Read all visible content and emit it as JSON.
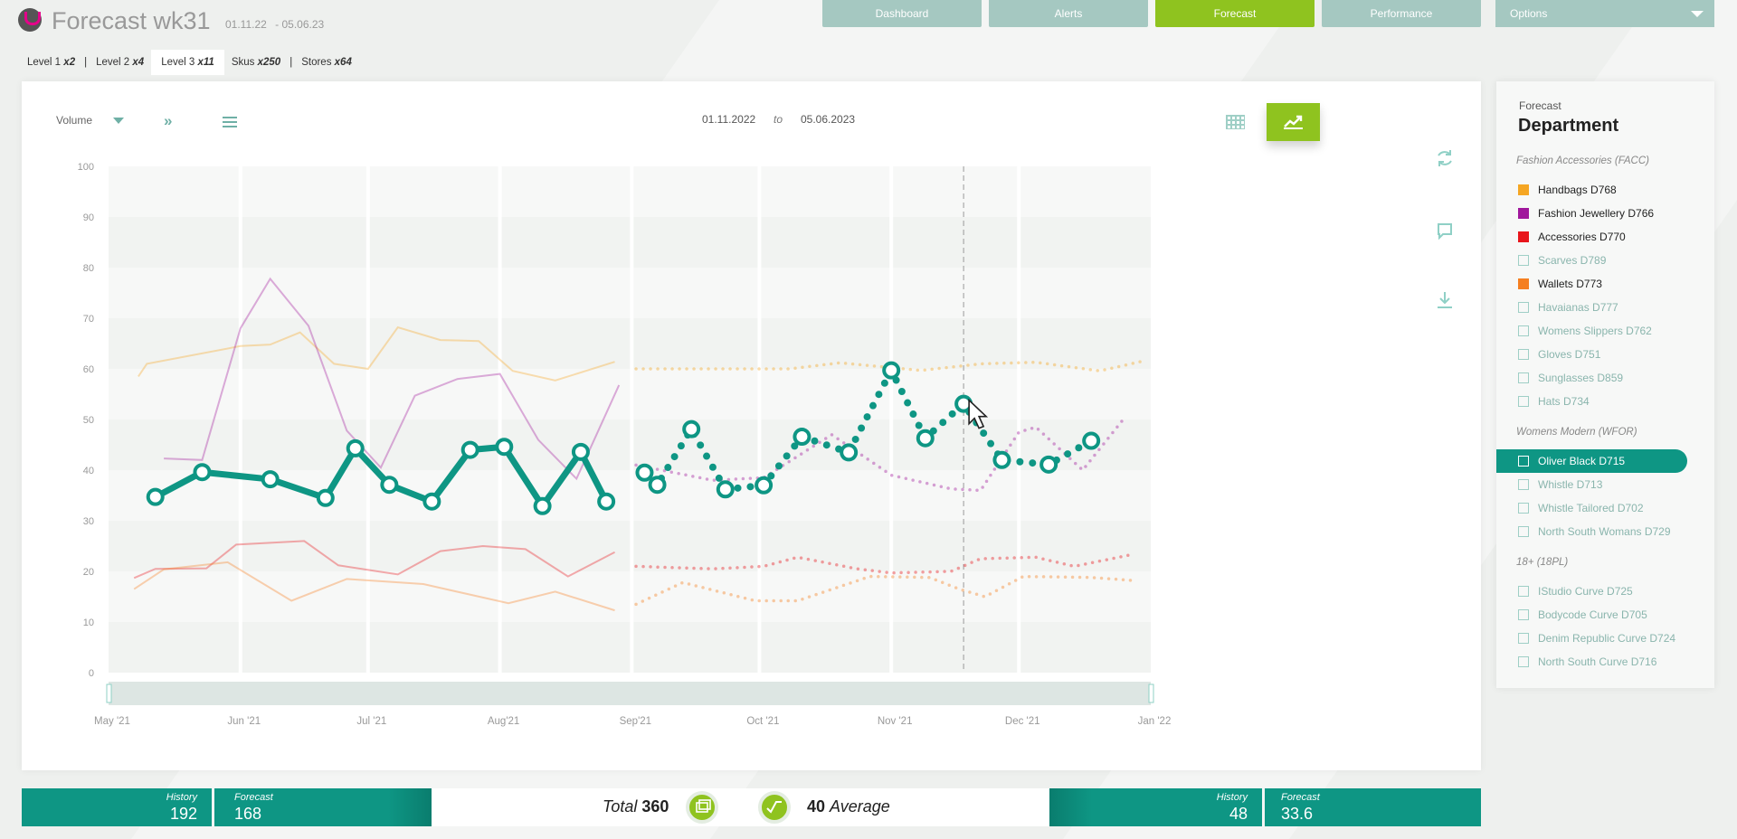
{
  "header": {
    "title": "Forecast wk31",
    "date_from": "01.11.22",
    "date_to": "- 05.06.23"
  },
  "nav": {
    "dashboard": "Dashboard",
    "alerts": "Alerts",
    "forecast": "Forecast",
    "performance": "Performance",
    "options": "Options"
  },
  "levels": [
    {
      "label": "Level 1",
      "count": "x2"
    },
    {
      "label": "Level 2",
      "count": "x4"
    },
    {
      "label": "Level 3",
      "count": "x11"
    },
    {
      "label": "Skus",
      "count": "x250"
    },
    {
      "label": "Stores",
      "count": "x64"
    }
  ],
  "toolbar": {
    "measure": "Volume",
    "range_from": "01.11.2022",
    "range_to_word": "to",
    "range_to": "05.06.2023"
  },
  "legend": {
    "kicker": "Forecast",
    "heading": "Department",
    "groups": [
      {
        "label": "Fashion Accessories (FACC)",
        "items": [
          {
            "label": "Handbags D768",
            "color": "#f5a623",
            "on": true
          },
          {
            "label": "Fashion Jewellery D766",
            "color": "#a0179c",
            "on": true
          },
          {
            "label": "Accessories D770",
            "color": "#e8151b",
            "on": true
          },
          {
            "label": "Scarves D789",
            "on": false
          },
          {
            "label": "Wallets D773",
            "color": "#f57f20",
            "on": true
          },
          {
            "label": "Havaianas D777",
            "on": false
          },
          {
            "label": "Womens Slippers D762",
            "on": false
          },
          {
            "label": "Gloves D751",
            "on": false
          },
          {
            "label": "Sunglasses D859",
            "on": false
          },
          {
            "label": "Hats D734",
            "on": false
          }
        ]
      },
      {
        "label": "Womens Modern (WFOR)",
        "items": [
          {
            "label": "Oliver Black D715",
            "on": true,
            "selected": true
          },
          {
            "label": "Whistle D713",
            "on": false
          },
          {
            "label": "Whistle Tailored D702",
            "on": false
          },
          {
            "label": "North South Womans D729",
            "on": false
          }
        ]
      },
      {
        "label": "18+ (18PL)",
        "items": [
          {
            "label": "IStudio Curve D725",
            "on": false
          },
          {
            "label": "Bodycode Curve D705",
            "on": false
          },
          {
            "label": "Denim Republic Curve D724",
            "on": false
          },
          {
            "label": "North South Curve D716",
            "on": false
          }
        ]
      }
    ]
  },
  "bottom": {
    "left_history_label": "History",
    "left_history_value": "192",
    "left_forecast_label": "Forecast",
    "left_forecast_value": "168",
    "total_label": "Total",
    "total_value": "360",
    "avg_value": "40",
    "avg_label": "Average",
    "right_history_label": "History",
    "right_history_value": "48",
    "right_forecast_label": "Forecast",
    "right_forecast_value": "33.6"
  },
  "colors": {
    "primary": "#0e9684",
    "accent": "#8fc31f",
    "nav": "#a5c8c1"
  },
  "chart_data": {
    "type": "line",
    "x_type": "date",
    "xlim": [
      "2021-05-01",
      "2022-01-01"
    ],
    "ylim": [
      0,
      100
    ],
    "y_ticks": [
      0,
      10,
      20,
      30,
      40,
      50,
      60,
      70,
      80,
      90,
      100
    ],
    "x_ticks": [
      {
        "x": "2021-05-01",
        "label": "May '21"
      },
      {
        "x": "2021-06-01",
        "label": "Jun '21"
      },
      {
        "x": "2021-07-01",
        "label": "Jul '21"
      },
      {
        "x": "2021-08-01",
        "label": "Aug'21"
      },
      {
        "x": "2021-09-01",
        "label": "Sep'21"
      },
      {
        "x": "2021-10-01",
        "label": "Oct '21"
      },
      {
        "x": "2021-11-01",
        "label": "Nov '21"
      },
      {
        "x": "2021-12-01",
        "label": "Dec '21"
      },
      {
        "x": "2022-01-01",
        "label": "Jan '22"
      }
    ],
    "history_end": "2021-08-30",
    "forecast_start": "2021-09-02",
    "cursor_x": "2021-11-18",
    "series": [
      {
        "name": "Oliver Black D715",
        "color": "#0e9684",
        "main": true,
        "history": [
          [
            "2021-05-12",
            34.7
          ],
          [
            "2021-05-23",
            39.6
          ],
          [
            "2021-06-08",
            38.2
          ],
          [
            "2021-06-21",
            34.5
          ],
          [
            "2021-06-28",
            44.3
          ],
          [
            "2021-07-06",
            37.1
          ],
          [
            "2021-07-16",
            33.8
          ],
          [
            "2021-07-25",
            44.0
          ],
          [
            "2021-08-02",
            44.6
          ],
          [
            "2021-08-11",
            32.9
          ],
          [
            "2021-08-20",
            43.6
          ],
          [
            "2021-08-26",
            33.8
          ]
        ],
        "forecast": [
          [
            "2021-09-04",
            39.5
          ],
          [
            "2021-09-07",
            37.1
          ],
          [
            "2021-09-15",
            48.1
          ],
          [
            "2021-09-23",
            36.2
          ],
          [
            "2021-10-02",
            37.0
          ],
          [
            "2021-10-11",
            46.6
          ],
          [
            "2021-10-22",
            43.5
          ],
          [
            "2021-11-01",
            59.7
          ],
          [
            "2021-11-09",
            46.3
          ],
          [
            "2021-11-18",
            53.1
          ],
          [
            "2021-11-27",
            42.0
          ],
          [
            "2021-12-08",
            41.1
          ],
          [
            "2021-12-18",
            45.8
          ]
        ]
      },
      {
        "name": "Handbags D768",
        "color": "#f5a623",
        "history": [
          [
            "2021-05-08",
            58.5
          ],
          [
            "2021-05-10",
            61.0
          ],
          [
            "2021-06-01",
            64.5
          ],
          [
            "2021-06-08",
            64.8
          ],
          [
            "2021-06-15",
            67.2
          ],
          [
            "2021-06-23",
            61.0
          ],
          [
            "2021-07-01",
            60.0
          ],
          [
            "2021-07-08",
            68.2
          ],
          [
            "2021-07-18",
            65.7
          ],
          [
            "2021-07-27",
            65.5
          ],
          [
            "2021-08-04",
            59.6
          ],
          [
            "2021-08-14",
            57.7
          ],
          [
            "2021-08-28",
            61.4
          ]
        ],
        "forecast": [
          [
            "2021-09-02",
            60.0
          ],
          [
            "2021-09-20",
            60.0
          ],
          [
            "2021-10-08",
            60.0
          ],
          [
            "2021-10-20",
            61.2
          ],
          [
            "2021-11-08",
            59.7
          ],
          [
            "2021-11-22",
            61.0
          ],
          [
            "2021-12-05",
            61.3
          ],
          [
            "2021-12-20",
            59.6
          ],
          [
            "2021-12-30",
            61.5
          ]
        ]
      },
      {
        "name": "Fashion Jewellery D766",
        "color": "#a0179c",
        "history": [
          [
            "2021-05-14",
            42.3
          ],
          [
            "2021-05-23",
            42.0
          ],
          [
            "2021-06-01",
            68.0
          ],
          [
            "2021-06-08",
            77.8
          ],
          [
            "2021-06-17",
            68.5
          ],
          [
            "2021-06-26",
            47.8
          ],
          [
            "2021-07-04",
            40.5
          ],
          [
            "2021-07-12",
            54.7
          ],
          [
            "2021-07-22",
            58.0
          ],
          [
            "2021-08-01",
            59.0
          ],
          [
            "2021-08-10",
            46.0
          ],
          [
            "2021-08-19",
            38.3
          ],
          [
            "2021-08-29",
            56.8
          ]
        ],
        "forecast": [
          [
            "2021-09-02",
            41.0
          ],
          [
            "2021-09-20",
            38.0
          ],
          [
            "2021-10-02",
            38.5
          ],
          [
            "2021-10-18",
            47.0
          ],
          [
            "2021-11-01",
            39.0
          ],
          [
            "2021-11-15",
            36.3
          ],
          [
            "2021-11-22",
            36.0
          ],
          [
            "2021-12-01",
            47.5
          ],
          [
            "2021-12-05",
            48.5
          ],
          [
            "2021-12-16",
            40.0
          ],
          [
            "2021-12-26",
            50.5
          ]
        ]
      },
      {
        "name": "Accessories D770",
        "color": "#e8151b",
        "history": [
          [
            "2021-05-07",
            18.7
          ],
          [
            "2021-05-12",
            20.5
          ],
          [
            "2021-05-24",
            20.6
          ],
          [
            "2021-05-31",
            25.3
          ],
          [
            "2021-06-16",
            26.0
          ],
          [
            "2021-06-24",
            21.2
          ],
          [
            "2021-07-08",
            19.4
          ],
          [
            "2021-07-18",
            24.0
          ],
          [
            "2021-07-28",
            25.0
          ],
          [
            "2021-08-07",
            24.4
          ],
          [
            "2021-08-17",
            19.0
          ],
          [
            "2021-08-28",
            23.8
          ]
        ],
        "forecast": [
          [
            "2021-09-02",
            21.0
          ],
          [
            "2021-09-20",
            20.5
          ],
          [
            "2021-10-02",
            21.0
          ],
          [
            "2021-10-10",
            22.8
          ],
          [
            "2021-10-24",
            20.5
          ],
          [
            "2021-11-01",
            19.7
          ],
          [
            "2021-11-15",
            20.0
          ],
          [
            "2021-11-22",
            22.5
          ],
          [
            "2021-12-05",
            22.8
          ],
          [
            "2021-12-14",
            21.0
          ],
          [
            "2021-12-28",
            23.4
          ]
        ]
      },
      {
        "name": "Wallets D773",
        "color": "#f57f20",
        "history": [
          [
            "2021-05-07",
            16.5
          ],
          [
            "2021-05-14",
            20.4
          ],
          [
            "2021-05-29",
            21.8
          ],
          [
            "2021-06-13",
            14.2
          ],
          [
            "2021-06-26",
            18.5
          ],
          [
            "2021-07-14",
            17.5
          ],
          [
            "2021-08-03",
            13.7
          ],
          [
            "2021-08-14",
            16.0
          ],
          [
            "2021-08-28",
            12.3
          ]
        ],
        "forecast": [
          [
            "2021-09-02",
            13.5
          ],
          [
            "2021-09-13",
            17.8
          ],
          [
            "2021-09-30",
            14.2
          ],
          [
            "2021-10-10",
            14.2
          ],
          [
            "2021-10-27",
            19.0
          ],
          [
            "2021-11-10",
            18.8
          ],
          [
            "2021-11-17",
            16.5
          ],
          [
            "2021-11-23",
            15.0
          ],
          [
            "2021-12-02",
            19.0
          ],
          [
            "2021-12-18",
            18.8
          ],
          [
            "2021-12-28",
            18.2
          ]
        ]
      }
    ]
  }
}
